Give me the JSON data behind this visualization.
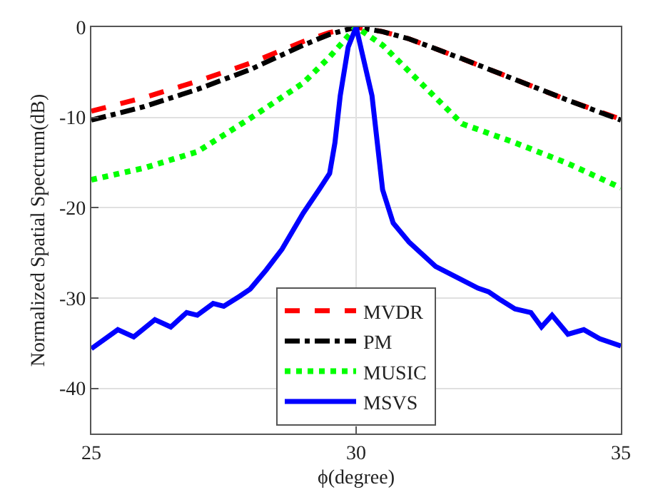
{
  "chart_data": {
    "type": "line",
    "xlabel": "ϕ(degree)",
    "ylabel": "Normalized Spatial Spectrum(dB)",
    "xlim": [
      25,
      35
    ],
    "xticks": [
      25,
      30,
      35
    ],
    "ylim": [
      -45,
      0
    ],
    "yticks": [
      0,
      -10,
      -20,
      -30,
      -40
    ],
    "grid": true,
    "legend": "bottom",
    "marker": "none",
    "series": [
      {
        "name": "MVDR",
        "color": "#ff0000",
        "line_style": "dashed",
        "x": [
          25,
          26,
          27,
          28,
          29,
          29.5,
          30,
          30.5,
          31,
          32,
          33,
          34,
          35
        ],
        "values": [
          -9.3,
          -7.8,
          -6.0,
          -4.0,
          -1.6,
          -0.6,
          0,
          -0.5,
          -1.3,
          -3.5,
          -5.8,
          -8.1,
          -10.2
        ]
      },
      {
        "name": "PM",
        "color": "#000000",
        "line_style": "dashdot",
        "x": [
          25,
          26,
          27,
          28,
          29,
          29.5,
          30,
          30.5,
          31,
          32,
          33,
          34,
          35
        ],
        "values": [
          -10.3,
          -8.8,
          -6.9,
          -4.7,
          -2.0,
          -0.8,
          0,
          -0.5,
          -1.3,
          -3.5,
          -5.8,
          -8.1,
          -10.3
        ]
      },
      {
        "name": "MUSIC",
        "color": "#00ff00",
        "line_style": "dotted",
        "x": [
          25,
          26,
          27,
          28,
          29,
          29.5,
          30,
          30.5,
          31,
          32,
          33,
          34,
          35
        ],
        "values": [
          -16.9,
          -15.6,
          -13.8,
          -10.1,
          -6.2,
          -3.3,
          0,
          -2.0,
          -4.9,
          -10.7,
          -12.8,
          -15.1,
          -17.8
        ]
      },
      {
        "name": "MSVS",
        "color": "#0000ff",
        "line_style": "solid",
        "x": [
          25,
          25.5,
          25.8,
          26.2,
          26.5,
          26.8,
          27.0,
          27.3,
          27.5,
          27.8,
          28,
          28.3,
          28.6,
          29,
          29.3,
          29.5,
          29.6,
          29.7,
          29.85,
          30,
          30.3,
          30.5,
          30.7,
          31,
          31.5,
          32,
          32.3,
          32.5,
          32.7,
          33,
          33.3,
          33.5,
          33.7,
          34,
          34.3,
          34.6,
          35
        ],
        "values": [
          -35.6,
          -33.5,
          -34.3,
          -32.4,
          -33.2,
          -31.6,
          -31.9,
          -30.6,
          -30.9,
          -29.8,
          -29.0,
          -26.9,
          -24.6,
          -20.6,
          -18.0,
          -16.2,
          -12.8,
          -7.6,
          -2.2,
          0,
          -7.6,
          -18.0,
          -21.7,
          -23.8,
          -26.5,
          -28.0,
          -28.9,
          -29.3,
          -30.1,
          -31.2,
          -31.6,
          -33.2,
          -31.9,
          -34.0,
          -33.5,
          -34.5,
          -35.3
        ]
      }
    ]
  }
}
